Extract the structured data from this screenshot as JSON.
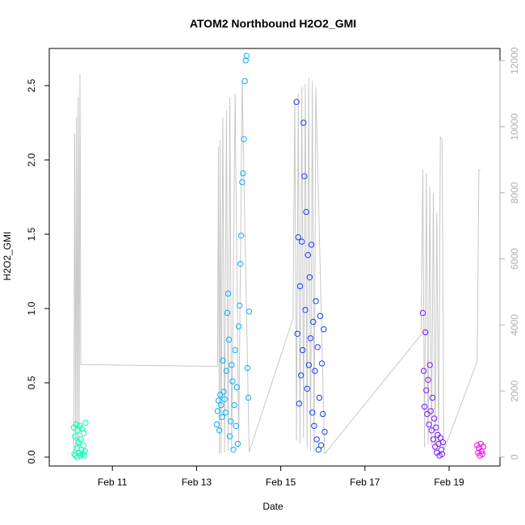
{
  "chart_data": {
    "type": "scatter",
    "title": "ATOM2 Northbound H2O2_GMI",
    "xlabel": "Date",
    "ylabel": "H2O2_GMI",
    "x_axis": {
      "unit": "days",
      "range": [
        "2017-02-09T12:00",
        "2017-02-20T05:00"
      ],
      "ticks": [
        {
          "value": "2017-02-11",
          "label": "Feb 11"
        },
        {
          "value": "2017-02-13",
          "label": "Feb 13"
        },
        {
          "value": "2017-02-15",
          "label": "Feb 15"
        },
        {
          "value": "2017-02-17",
          "label": "Feb 17"
        },
        {
          "value": "2017-02-19",
          "label": "Feb 19"
        }
      ]
    },
    "y_axis": {
      "range": [
        -0.06,
        2.75
      ],
      "ticks": [
        0.0,
        0.5,
        1.0,
        1.5,
        2.0,
        2.5
      ],
      "tick_labels": [
        "0.0",
        "0.5",
        "1.0",
        "1.5",
        "2.0",
        "2.5"
      ]
    },
    "y2_axis": {
      "range": [
        -270,
        12370
      ],
      "ticks": [
        0,
        2000,
        4000,
        6000,
        8000,
        10000,
        12000
      ],
      "tick_labels": [
        "0",
        "2000",
        "4000",
        "6000",
        "8000",
        "10000",
        "12000"
      ],
      "color": "#b0b0b0"
    },
    "grid": false,
    "series": [
      {
        "color": "#00ffb2",
        "points": [
          [
            "2017-02-10T02:00",
            0.2
          ],
          [
            "2017-02-10T02:20",
            0.02
          ],
          [
            "2017-02-10T02:40",
            0.14
          ],
          [
            "2017-02-10T03:00",
            0.01
          ],
          [
            "2017-02-10T03:20",
            0.22
          ],
          [
            "2017-02-10T03:40",
            0.06
          ],
          [
            "2017-02-10T04:00",
            0.0
          ],
          [
            "2017-02-10T04:20",
            0.18
          ],
          [
            "2017-02-10T04:40",
            0.1
          ],
          [
            "2017-02-10T05:00",
            0.03
          ],
          [
            "2017-02-10T05:20",
            0.21
          ],
          [
            "2017-02-10T05:40",
            0.01
          ],
          [
            "2017-02-10T06:00",
            0.12
          ],
          [
            "2017-02-10T06:20",
            0.05
          ],
          [
            "2017-02-10T06:40",
            0.19
          ],
          [
            "2017-02-10T07:00",
            0.02
          ],
          [
            "2017-02-10T07:20",
            0.08
          ],
          [
            "2017-02-10T07:40",
            0.16
          ],
          [
            "2017-02-10T08:00",
            0.01
          ],
          [
            "2017-02-10T08:20",
            0.04
          ],
          [
            "2017-02-10T08:40",
            0.23
          ]
        ]
      },
      {
        "color": "#00b2ff",
        "points": [
          [
            "2017-02-13T11:30",
            0.22
          ],
          [
            "2017-02-13T12:00",
            0.31
          ],
          [
            "2017-02-13T12:30",
            0.38
          ],
          [
            "2017-02-13T13:00",
            0.18
          ],
          [
            "2017-02-13T13:30",
            0.42
          ],
          [
            "2017-02-13T14:00",
            0.35
          ],
          [
            "2017-02-13T14:30",
            0.27
          ],
          [
            "2017-02-13T15:00",
            0.65
          ],
          [
            "2017-02-13T15:30",
            0.44
          ],
          [
            "2017-02-13T16:00",
            0.39
          ],
          [
            "2017-02-13T16:30",
            0.3
          ],
          [
            "2017-02-13T17:00",
            0.58
          ],
          [
            "2017-02-13T17:30",
            0.97
          ],
          [
            "2017-02-13T18:00",
            1.1
          ],
          [
            "2017-02-13T18:30",
            0.79
          ],
          [
            "2017-02-13T19:00",
            0.14
          ],
          [
            "2017-02-13T19:30",
            0.24
          ],
          [
            "2017-02-13T20:00",
            0.62
          ],
          [
            "2017-02-13T20:30",
            0.51
          ],
          [
            "2017-02-13T21:00",
            0.05
          ],
          [
            "2017-02-13T21:30",
            0.35
          ],
          [
            "2017-02-13T22:00",
            0.72
          ],
          [
            "2017-02-13T22:30",
            0.21
          ],
          [
            "2017-02-13T23:00",
            0.47
          ],
          [
            "2017-02-13T23:30",
            0.09
          ],
          [
            "2017-02-14T00:00",
            0.88
          ],
          [
            "2017-02-14T00:30",
            1.02
          ],
          [
            "2017-02-14T01:00",
            1.3
          ],
          [
            "2017-02-14T01:30",
            1.49
          ],
          [
            "2017-02-14T02:00",
            1.85
          ],
          [
            "2017-02-14T02:30",
            1.91
          ],
          [
            "2017-02-14T03:00",
            2.14
          ],
          [
            "2017-02-14T03:30",
            2.53
          ],
          [
            "2017-02-14T04:00",
            2.67
          ],
          [
            "2017-02-14T04:30",
            2.7
          ],
          [
            "2017-02-14T05:00",
            0.6
          ],
          [
            "2017-02-14T05:30",
            0.4
          ],
          [
            "2017-02-14T06:00",
            0.98
          ]
        ]
      },
      {
        "color": "#1a3cff",
        "points": [
          [
            "2017-02-15T09:00",
            2.39
          ],
          [
            "2017-02-15T09:30",
            0.83
          ],
          [
            "2017-02-15T10:00",
            1.48
          ],
          [
            "2017-02-15T10:30",
            0.36
          ],
          [
            "2017-02-15T11:00",
            1.15
          ],
          [
            "2017-02-15T11:30",
            0.55
          ],
          [
            "2017-02-15T12:00",
            1.45
          ],
          [
            "2017-02-15T12:30",
            0.72
          ],
          [
            "2017-02-15T13:00",
            2.25
          ],
          [
            "2017-02-15T13:30",
            1.89
          ],
          [
            "2017-02-15T14:00",
            0.99
          ],
          [
            "2017-02-15T14:30",
            1.65
          ],
          [
            "2017-02-15T15:00",
            0.46
          ],
          [
            "2017-02-15T15:30",
            1.36
          ],
          [
            "2017-02-15T16:00",
            0.62
          ],
          [
            "2017-02-15T16:30",
            1.21
          ],
          [
            "2017-02-15T17:00",
            0.8
          ],
          [
            "2017-02-15T17:30",
            1.43
          ],
          [
            "2017-02-15T18:00",
            0.3
          ],
          [
            "2017-02-15T18:30",
            0.91
          ],
          [
            "2017-02-15T19:00",
            0.21
          ],
          [
            "2017-02-15T19:30",
            0.58
          ],
          [
            "2017-02-15T20:00",
            1.05
          ],
          [
            "2017-02-15T20:30",
            0.12
          ],
          [
            "2017-02-15T21:00",
            0.74
          ],
          [
            "2017-02-15T21:30",
            0.05
          ],
          [
            "2017-02-15T22:00",
            0.4
          ],
          [
            "2017-02-15T22:30",
            0.95
          ],
          [
            "2017-02-15T23:00",
            0.08
          ],
          [
            "2017-02-15T23:30",
            0.63
          ],
          [
            "2017-02-16T00:00",
            0.29
          ],
          [
            "2017-02-16T00:30",
            0.86
          ],
          [
            "2017-02-16T01:00",
            0.17
          ]
        ]
      },
      {
        "color": "#7a1aff",
        "points": [
          [
            "2017-02-18T09:00",
            0.97
          ],
          [
            "2017-02-18T09:30",
            0.58
          ],
          [
            "2017-02-18T10:00",
            0.34
          ],
          [
            "2017-02-18T10:30",
            0.84
          ],
          [
            "2017-02-18T11:00",
            0.45
          ],
          [
            "2017-02-18T11:30",
            0.29
          ],
          [
            "2017-02-18T12:00",
            0.52
          ],
          [
            "2017-02-18T12:30",
            0.22
          ],
          [
            "2017-02-18T13:00",
            0.62
          ],
          [
            "2017-02-18T13:30",
            0.31
          ],
          [
            "2017-02-18T14:00",
            0.18
          ],
          [
            "2017-02-18T14:30",
            0.4
          ],
          [
            "2017-02-18T15:00",
            0.12
          ],
          [
            "2017-02-18T15:30",
            0.26
          ],
          [
            "2017-02-18T16:00",
            0.07
          ],
          [
            "2017-02-18T16:30",
            0.2
          ],
          [
            "2017-02-18T17:00",
            0.03
          ],
          [
            "2017-02-18T17:30",
            0.15
          ],
          [
            "2017-02-18T18:00",
            0.09
          ],
          [
            "2017-02-18T18:30",
            0.01
          ],
          [
            "2017-02-18T19:00",
            0.13
          ],
          [
            "2017-02-18T19:30",
            0.05
          ],
          [
            "2017-02-18T20:00",
            0.02
          ],
          [
            "2017-02-18T20:30",
            0.1
          ]
        ]
      },
      {
        "color": "#ff00ee",
        "points": [
          [
            "2017-02-19T16:00",
            0.08
          ],
          [
            "2017-02-19T16:30",
            0.03
          ],
          [
            "2017-02-19T17:00",
            0.06
          ],
          [
            "2017-02-19T17:30",
            0.01
          ],
          [
            "2017-02-19T18:00",
            0.09
          ],
          [
            "2017-02-19T18:30",
            0.04
          ],
          [
            "2017-02-19T19:00",
            0.02
          ],
          [
            "2017-02-19T19:30",
            0.07
          ]
        ]
      }
    ],
    "altitude_line": {
      "color": "#c8c8c8",
      "points": [
        [
          "2017-02-10T02:00",
          50
        ],
        [
          "2017-02-10T02:30",
          9800
        ],
        [
          "2017-02-10T03:00",
          200
        ],
        [
          "2017-02-10T03:30",
          10300
        ],
        [
          "2017-02-10T04:00",
          150
        ],
        [
          "2017-02-10T04:30",
          10900
        ],
        [
          "2017-02-10T05:00",
          300
        ],
        [
          "2017-02-10T05:30",
          11600
        ],
        [
          "2017-02-10T06:00",
          2800
        ],
        [
          "2017-02-13T12:00",
          2750
        ],
        [
          "2017-02-13T12:30",
          9400
        ],
        [
          "2017-02-13T13:00",
          100
        ],
        [
          "2017-02-13T13:30",
          9600
        ],
        [
          "2017-02-13T14:00",
          120
        ],
        [
          "2017-02-13T15:00",
          10300
        ],
        [
          "2017-02-13T16:00",
          150
        ],
        [
          "2017-02-13T17:00",
          10500
        ],
        [
          "2017-02-13T18:00",
          200
        ],
        [
          "2017-02-13T19:00",
          10900
        ],
        [
          "2017-02-13T20:00",
          250
        ],
        [
          "2017-02-13T22:00",
          11000
        ],
        [
          "2017-02-14T00:00",
          300
        ],
        [
          "2017-02-14T02:00",
          11400
        ],
        [
          "2017-02-14T06:00",
          150
        ],
        [
          "2017-02-15T07:00",
          4200
        ],
        [
          "2017-02-15T08:00",
          10800
        ],
        [
          "2017-02-15T09:00",
          500
        ],
        [
          "2017-02-15T10:00",
          11000
        ],
        [
          "2017-02-15T11:00",
          400
        ],
        [
          "2017-02-15T12:00",
          11200
        ],
        [
          "2017-02-15T13:00",
          600
        ],
        [
          "2017-02-15T14:00",
          11300
        ],
        [
          "2017-02-15T15:00",
          300
        ],
        [
          "2017-02-15T16:00",
          11500
        ],
        [
          "2017-02-15T17:00",
          200
        ],
        [
          "2017-02-15T18:00",
          11400
        ],
        [
          "2017-02-15T19:00",
          150
        ],
        [
          "2017-02-15T20:00",
          11200
        ],
        [
          "2017-02-16T01:00",
          100
        ],
        [
          "2017-02-18T08:00",
          3700
        ],
        [
          "2017-02-18T09:00",
          8700
        ],
        [
          "2017-02-18T10:00",
          300
        ],
        [
          "2017-02-18T11:00",
          8600
        ],
        [
          "2017-02-18T12:00",
          400
        ],
        [
          "2017-02-18T13:00",
          8200
        ],
        [
          "2017-02-18T14:00",
          350
        ],
        [
          "2017-02-18T15:00",
          8000
        ],
        [
          "2017-02-18T16:00",
          200
        ],
        [
          "2017-02-18T17:00",
          7400
        ],
        [
          "2017-02-18T18:00",
          300
        ],
        [
          "2017-02-18T19:00",
          9700
        ],
        [
          "2017-02-18T20:00",
          9600
        ],
        [
          "2017-02-18T21:00",
          200
        ],
        [
          "2017-02-19T16:00",
          2900
        ],
        [
          "2017-02-19T17:00",
          8700
        ],
        [
          "2017-02-19T18:00",
          8700
        ]
      ]
    }
  }
}
